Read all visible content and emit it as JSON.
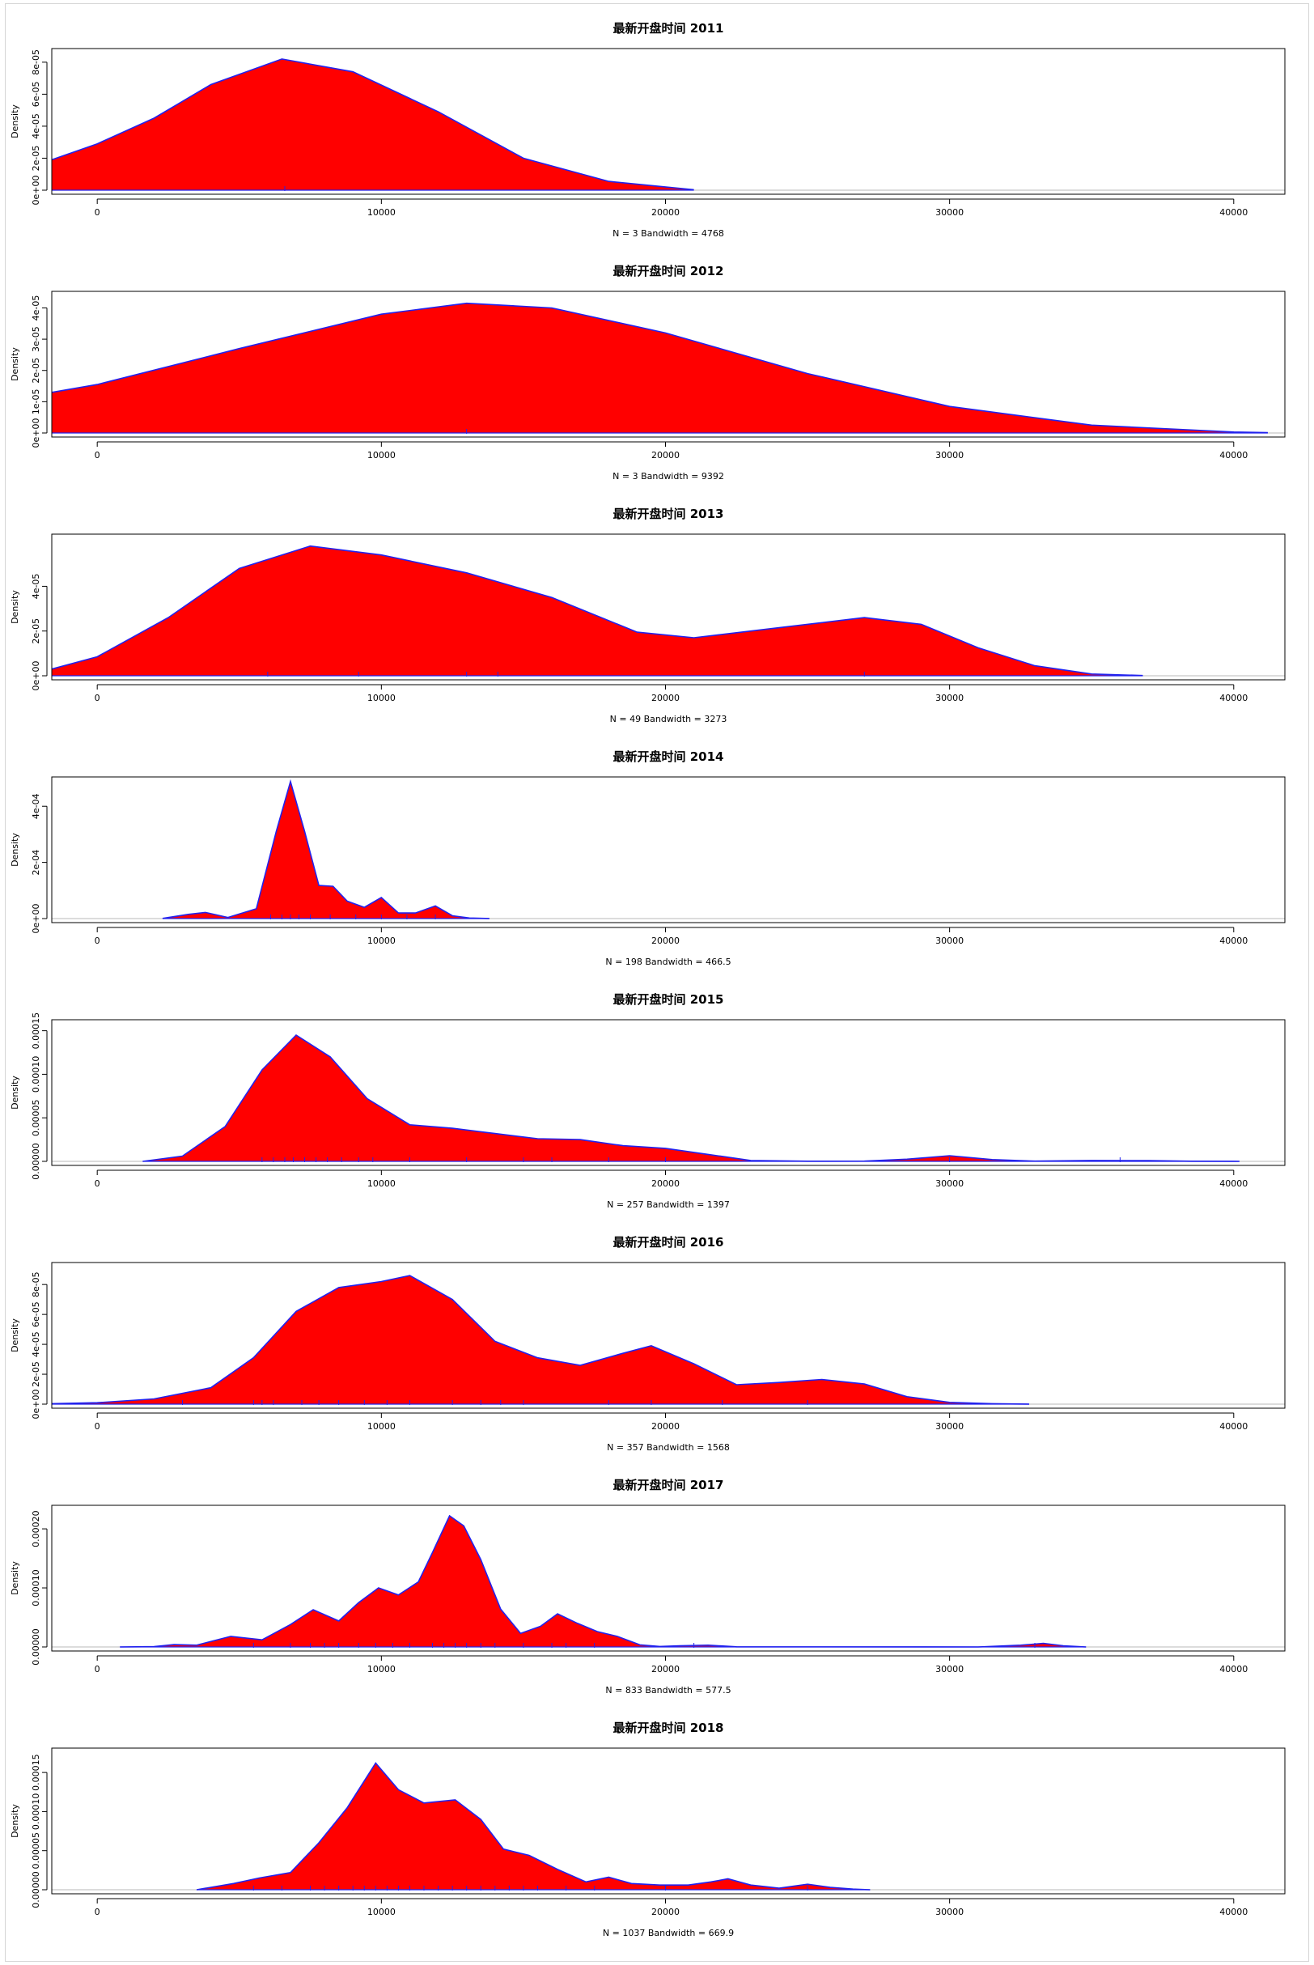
{
  "chart_data": [
    {
      "type": "area",
      "title": "最新开盘时间 2011",
      "xlabel": "N = 3   Bandwidth = 4768",
      "ylabel": "Density",
      "xlim": [
        -1600,
        41800
      ],
      "ylim": [
        0,
        8.6e-05
      ],
      "x_ticks": [
        0,
        10000,
        20000,
        30000,
        40000
      ],
      "x_tick_labels": [
        "0",
        "10000",
        "20000",
        "30000",
        "40000"
      ],
      "y_ticks": [
        0,
        2e-05,
        4e-05,
        6e-05,
        8e-05
      ],
      "y_tick_labels": [
        "0e+00",
        "2e-05",
        "4e-05",
        "6e-05",
        "8e-05"
      ],
      "fill_color": "#ff0000",
      "line_color": "#2222ee",
      "x": [
        -1600,
        0,
        2000,
        4000,
        6500,
        9000,
        12000,
        15000,
        18000,
        21000
      ],
      "y": [
        1.9e-05,
        2.9e-05,
        4.5e-05,
        6.6e-05,
        8.2e-05,
        7.4e-05,
        4.9e-05,
        2e-05,
        5.5e-06,
        3e-07
      ],
      "rug": [
        6600
      ]
    },
    {
      "type": "area",
      "title": "最新开盘时间 2012",
      "xlabel": "N = 3   Bandwidth = 9392",
      "ylabel": "Density",
      "xlim": [
        -1600,
        41800
      ],
      "ylim": [
        0,
        4.4e-05
      ],
      "x_ticks": [
        0,
        10000,
        20000,
        30000,
        40000
      ],
      "x_tick_labels": [
        "0",
        "10000",
        "20000",
        "30000",
        "40000"
      ],
      "y_ticks": [
        0,
        1e-05,
        2e-05,
        3e-05,
        4e-05
      ],
      "y_tick_labels": [
        "0e+00",
        "1e-05",
        "2e-05",
        "3e-05",
        "4e-05"
      ],
      "fill_color": "#ff0000",
      "line_color": "#2222ee",
      "x": [
        -1600,
        0,
        5000,
        10000,
        13000,
        16000,
        20000,
        25000,
        30000,
        35000,
        40000,
        41200
      ],
      "y": [
        1.3e-05,
        1.55e-05,
        2.7e-05,
        3.8e-05,
        4.15e-05,
        4e-05,
        3.2e-05,
        1.9e-05,
        8.5e-06,
        2.5e-06,
        3e-07,
        1e-07
      ],
      "rug": [
        13000
      ]
    },
    {
      "type": "area",
      "title": "最新开盘时间 2013",
      "xlabel": "N = 49   Bandwidth = 3273",
      "ylabel": "Density",
      "xlim": [
        -1600,
        41800
      ],
      "ylim": [
        0,
        6.15e-05
      ],
      "x_ticks": [
        0,
        10000,
        20000,
        30000,
        40000
      ],
      "x_tick_labels": [
        "0",
        "10000",
        "20000",
        "30000",
        "40000"
      ],
      "y_ticks": [
        0,
        2e-05,
        4e-05
      ],
      "y_tick_labels": [
        "0e+00",
        "2e-05",
        "4e-05"
      ],
      "fill_color": "#ff0000",
      "line_color": "#2222ee",
      "x": [
        -1600,
        0,
        2500,
        5000,
        7500,
        10000,
        13000,
        16000,
        19000,
        21000,
        24000,
        27000,
        29000,
        31000,
        33000,
        35000,
        36800
      ],
      "y": [
        3e-06,
        8.5e-06,
        2.6e-05,
        4.8e-05,
        5.8e-05,
        5.4e-05,
        4.6e-05,
        3.5e-05,
        1.95e-05,
        1.7e-05,
        2.15e-05,
        2.6e-05,
        2.3e-05,
        1.25e-05,
        4.5e-06,
        8e-07,
        1e-07
      ],
      "rug": [
        6000,
        9200,
        13000,
        14100,
        27000
      ]
    },
    {
      "type": "area",
      "title": "最新开盘时间 2014",
      "xlabel": "N = 198   Bandwidth = 466.5",
      "ylabel": "Density",
      "xlim": [
        -1600,
        41800
      ],
      "ylim": [
        0,
        0.00049
      ],
      "x_ticks": [
        0,
        10000,
        20000,
        30000,
        40000
      ],
      "x_tick_labels": [
        "0",
        "10000",
        "20000",
        "30000",
        "40000"
      ],
      "y_ticks": [
        0,
        0.0002,
        0.0004
      ],
      "y_tick_labels": [
        "0e+00",
        "2e-04",
        "4e-04"
      ],
      "fill_color": "#ff0000",
      "line_color": "#2222ee",
      "x": [
        2300,
        3200,
        3800,
        4600,
        5600,
        6300,
        6800,
        7300,
        7800,
        8300,
        8800,
        9400,
        10000,
        10600,
        11200,
        11900,
        12500,
        13100,
        13800
      ],
      "y": [
        5e-07,
        1.5e-05,
        2.2e-05,
        4e-06,
        3.5e-05,
        0.00031,
        0.000488,
        0.00031,
        0.000118,
        0.000115,
        6.2e-05,
        4e-05,
        7.5e-05,
        2e-05,
        2e-05,
        4.5e-05,
        1e-05,
        2e-06,
        2e-07
      ],
      "rug": [
        6100,
        6500,
        6800,
        7100,
        7500,
        8200,
        9100,
        10000,
        10900,
        11900
      ]
    },
    {
      "type": "area",
      "title": "最新开盘时间 2015",
      "xlabel": "N = 257   Bandwidth = 1397",
      "ylabel": "Density",
      "xlim": [
        -1600,
        41800
      ],
      "ylim": [
        0,
        0.000158
      ],
      "x_ticks": [
        0,
        10000,
        20000,
        30000,
        40000
      ],
      "x_tick_labels": [
        "0",
        "10000",
        "20000",
        "30000",
        "40000"
      ],
      "y_ticks": [
        0,
        5e-05,
        0.0001,
        0.00015
      ],
      "y_tick_labels": [
        "0.00000",
        "0.00005",
        "0.00010",
        "0.00015"
      ],
      "fill_color": "#ff0000",
      "line_color": "#2222ee",
      "x": [
        1600,
        3000,
        4500,
        5800,
        7000,
        8200,
        9500,
        11000,
        12500,
        14000,
        15500,
        17000,
        18500,
        20000,
        21500,
        23000,
        25000,
        27000,
        28500,
        30000,
        31500,
        33000,
        35000,
        37000,
        38500,
        40200
      ],
      "y": [
        0,
        6e-06,
        4e-05,
        0.000105,
        0.000145,
        0.00012,
        7.2e-05,
        4.2e-05,
        3.8e-05,
        3.2e-05,
        2.6e-05,
        2.5e-05,
        1.8e-05,
        1.5e-05,
        8e-06,
        1e-06,
        2e-07,
        3e-07,
        2.5e-06,
        6.5e-06,
        2e-06,
        3e-07,
        1e-06,
        8e-07,
        2e-07,
        0
      ],
      "rug": [
        5800,
        6200,
        6600,
        6900,
        7300,
        7700,
        8100,
        8600,
        9200,
        9700,
        11000,
        13000,
        15000,
        16000,
        18000,
        20000,
        30000,
        36000
      ]
    },
    {
      "type": "area",
      "title": "最新开盘时间 2016",
      "xlabel": "N = 357   Bandwidth = 1568",
      "ylabel": "Density",
      "xlim": [
        -1600,
        41800
      ],
      "ylim": [
        0,
        9.2e-05
      ],
      "x_ticks": [
        0,
        10000,
        20000,
        30000,
        40000
      ],
      "x_tick_labels": [
        "0",
        "10000",
        "20000",
        "30000",
        "40000"
      ],
      "y_ticks": [
        0,
        2e-05,
        4e-05,
        6e-05,
        8e-05
      ],
      "y_tick_labels": [
        "0e+00",
        "2e-05",
        "4e-05",
        "6e-05",
        "8e-05"
      ],
      "fill_color": "#ff0000",
      "line_color": "#2222ee",
      "x": [
        -1600,
        0,
        2000,
        4000,
        5500,
        7000,
        8500,
        10000,
        11000,
        12500,
        14000,
        15500,
        17000,
        18500,
        19500,
        21000,
        22500,
        24000,
        25500,
        27000,
        28500,
        30000,
        31500,
        32800
      ],
      "y": [
        3e-07,
        1e-06,
        3.5e-06,
        1.1e-05,
        3.1e-05,
        6.2e-05,
        7.8e-05,
        8.2e-05,
        8.6e-05,
        7e-05,
        4.2e-05,
        3.1e-05,
        2.6e-05,
        3.4e-05,
        3.9e-05,
        2.7e-05,
        1.3e-05,
        1.45e-05,
        1.65e-05,
        1.35e-05,
        5e-06,
        1.2e-06,
        3e-07,
        0
      ],
      "rug": [
        3000,
        5500,
        5800,
        6200,
        7200,
        7800,
        8500,
        9400,
        10200,
        11000,
        12500,
        13500,
        14200,
        15000,
        18000,
        19500,
        22000,
        25000
      ]
    },
    {
      "type": "area",
      "title": "最新开盘时间 2017",
      "xlabel": "N = 833   Bandwidth = 577.5",
      "ylabel": "Density",
      "xlim": [
        -1600,
        41800
      ],
      "ylim": [
        0,
        0.000233
      ],
      "x_ticks": [
        0,
        10000,
        20000,
        30000,
        40000
      ],
      "x_tick_labels": [
        "0",
        "10000",
        "20000",
        "30000",
        "40000"
      ],
      "y_ticks": [
        0,
        0.0001,
        0.0002
      ],
      "y_tick_labels": [
        "0.00000",
        "0.00010",
        "0.00020"
      ],
      "fill_color": "#ff0000",
      "line_color": "#2222ee",
      "x": [
        800,
        2000,
        2700,
        3500,
        4700,
        5800,
        6800,
        7600,
        8500,
        9200,
        9900,
        10600,
        11300,
        11800,
        12400,
        12900,
        13500,
        14200,
        14900,
        15600,
        16200,
        16900,
        17600,
        18300,
        19100,
        19800,
        20500,
        21500,
        22500,
        31000,
        32500,
        33300,
        34000,
        34800
      ],
      "y": [
        0,
        5e-07,
        4e-06,
        3e-06,
        1.8e-05,
        1.2e-05,
        3.8e-05,
        6.3e-05,
        4.4e-05,
        7.5e-05,
        0.0001,
        8.8e-05,
        0.00011,
        0.00016,
        0.000222,
        0.000205,
        0.000148,
        6.4e-05,
        2.3e-05,
        3.5e-05,
        5.6e-05,
        4e-05,
        2.6e-05,
        1.8e-05,
        3.5e-06,
        8e-07,
        2e-06,
        3e-06,
        3e-07,
        0,
        3e-06,
        6e-06,
        2e-06,
        0
      ],
      "rug": [
        5500,
        6800,
        7500,
        8000,
        8500,
        9200,
        9800,
        10400,
        11000,
        11800,
        12200,
        12600,
        13000,
        13500,
        14000,
        15000,
        16000,
        16500,
        17500,
        21000,
        33000
      ]
    },
    {
      "type": "area",
      "title": "最新开盘时间 2018",
      "xlabel": "N = 1037   Bandwidth = 669.9",
      "ylabel": "Density",
      "xlim": [
        -1600,
        41800
      ],
      "ylim": [
        0,
        0.000176
      ],
      "x_ticks": [
        0,
        10000,
        20000,
        30000,
        40000
      ],
      "x_tick_labels": [
        "0",
        "10000",
        "20000",
        "30000",
        "40000"
      ],
      "y_ticks": [
        0,
        5e-05,
        0.0001,
        0.00015
      ],
      "y_tick_labels": [
        "0.00000",
        "0.00005",
        "0.00010",
        "0.00015"
      ],
      "fill_color": "#ff0000",
      "line_color": "#2222ee",
      "x": [
        3500,
        4800,
        5700,
        6800,
        7800,
        8800,
        9800,
        10600,
        11500,
        12600,
        13500,
        14300,
        15200,
        16200,
        17200,
        18000,
        18800,
        19800,
        20800,
        21600,
        22200,
        23000,
        24000,
        25000,
        25800,
        26600,
        27200
      ],
      "y": [
        0,
        8e-06,
        1.5e-05,
        2.2e-05,
        6e-05,
        0.000105,
        0.000162,
        0.000128,
        0.000111,
        0.000115,
        9e-05,
        5.2e-05,
        4.4e-05,
        2.6e-05,
        1e-05,
        1.6e-05,
        8e-06,
        6e-06,
        6e-06,
        1e-05,
        1.4e-05,
        6e-06,
        2e-06,
        7e-06,
        3e-06,
        8e-07,
        0
      ],
      "rug": [
        5500,
        6500,
        7500,
        8000,
        8500,
        9000,
        9400,
        9800,
        10200,
        10600,
        11000,
        11500,
        12000,
        12500,
        13000,
        13500,
        14000,
        14500,
        15000,
        15500,
        16500,
        17500,
        20000,
        25000
      ]
    }
  ]
}
